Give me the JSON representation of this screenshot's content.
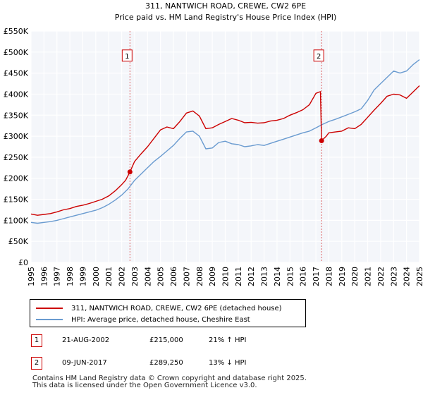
{
  "chart_data": {
    "type": "line",
    "title": "311, NANTWICH ROAD, CREWE, CW2 6PE",
    "subtitle": "Price paid vs. HM Land Registry's House Price Index (HPI)",
    "y_tick_labels": [
      "£0",
      "£50K",
      "£100K",
      "£150K",
      "£200K",
      "£250K",
      "£300K",
      "£350K",
      "£400K",
      "£450K",
      "£500K",
      "£550K"
    ],
    "y_ticks": [
      0,
      50000,
      100000,
      150000,
      200000,
      250000,
      300000,
      350000,
      400000,
      450000,
      500000,
      550000
    ],
    "x_tick_labels": [
      "1995",
      "1996",
      "1997",
      "1998",
      "1999",
      "2000",
      "2001",
      "2002",
      "2003",
      "2004",
      "2005",
      "2006",
      "2007",
      "2008",
      "2009",
      "2010",
      "2011",
      "2012",
      "2013",
      "2014",
      "2015",
      "2016",
      "2017",
      "2018",
      "2019",
      "2020",
      "2021",
      "2022",
      "2023",
      "2024",
      "2025"
    ],
    "xlim": [
      1995,
      2025
    ],
    "ylim": [
      0,
      550000
    ],
    "grid": true,
    "series": [
      {
        "name": "311, NANTWICH ROAD, CREWE, CW2 6PE (detached house)",
        "color": "#cc0000",
        "x": [
          1995.0,
          1995.5,
          1996.0,
          1996.5,
          1997.0,
          1997.5,
          1998.0,
          1998.5,
          1999.0,
          1999.5,
          2000.0,
          2000.5,
          2001.0,
          2001.5,
          2002.0,
          2002.3,
          2002.64,
          2003.0,
          2003.5,
          2004.0,
          2004.5,
          2005.0,
          2005.5,
          2006.0,
          2006.5,
          2007.0,
          2007.5,
          2008.0,
          2008.5,
          2009.0,
          2009.5,
          2010.0,
          2010.5,
          2011.0,
          2011.5,
          2012.0,
          2012.5,
          2013.0,
          2013.5,
          2014.0,
          2014.5,
          2015.0,
          2015.5,
          2016.0,
          2016.5,
          2017.0,
          2017.35,
          2017.44,
          2017.8,
          2018.0,
          2018.5,
          2019.0,
          2019.5,
          2020.0,
          2020.5,
          2021.0,
          2021.5,
          2022.0,
          2022.5,
          2023.0,
          2023.5,
          2024.0,
          2024.5,
          2025.0
        ],
        "values": [
          115000,
          112000,
          114000,
          116000,
          120000,
          125000,
          128000,
          133000,
          136000,
          140000,
          145000,
          150000,
          158000,
          170000,
          185000,
          195000,
          215000,
          240000,
          258000,
          275000,
          295000,
          315000,
          322000,
          318000,
          335000,
          355000,
          360000,
          348000,
          318000,
          320000,
          328000,
          335000,
          342000,
          338000,
          332000,
          333000,
          331000,
          332000,
          336000,
          338000,
          342000,
          350000,
          356000,
          363000,
          375000,
          402000,
          406000,
          289250,
          300000,
          308000,
          310000,
          312000,
          320000,
          318000,
          328000,
          345000,
          362000,
          378000,
          395000,
          400000,
          398000,
          390000,
          405000,
          420000
        ]
      },
      {
        "name": "HPI: Average price, detached house, Cheshire East",
        "color": "#6a9bd0",
        "x": [
          1995.0,
          1995.5,
          1996.0,
          1996.5,
          1997.0,
          1997.5,
          1998.0,
          1998.5,
          1999.0,
          1999.5,
          2000.0,
          2000.5,
          2001.0,
          2001.5,
          2002.0,
          2002.5,
          2003.0,
          2003.5,
          2004.0,
          2004.5,
          2005.0,
          2005.5,
          2006.0,
          2006.5,
          2007.0,
          2007.5,
          2008.0,
          2008.5,
          2009.0,
          2009.5,
          2010.0,
          2010.5,
          2011.0,
          2011.5,
          2012.0,
          2012.5,
          2013.0,
          2013.5,
          2014.0,
          2014.5,
          2015.0,
          2015.5,
          2016.0,
          2016.5,
          2017.0,
          2017.5,
          2018.0,
          2018.5,
          2019.0,
          2019.5,
          2020.0,
          2020.5,
          2021.0,
          2021.5,
          2022.0,
          2022.5,
          2023.0,
          2023.5,
          2024.0,
          2024.5,
          2025.0
        ],
        "values": [
          95000,
          93000,
          95000,
          97000,
          100000,
          104000,
          108000,
          112000,
          116000,
          120000,
          124000,
          130000,
          138000,
          148000,
          160000,
          175000,
          195000,
          210000,
          225000,
          240000,
          252000,
          265000,
          278000,
          295000,
          310000,
          312000,
          300000,
          270000,
          272000,
          285000,
          288000,
          282000,
          280000,
          275000,
          277000,
          280000,
          278000,
          283000,
          288000,
          293000,
          298000,
          303000,
          308000,
          312000,
          320000,
          328000,
          335000,
          340000,
          346000,
          352000,
          358000,
          365000,
          385000,
          410000,
          425000,
          440000,
          455000,
          450000,
          455000,
          470000,
          482000
        ]
      }
    ],
    "annotations": [
      {
        "label": "1",
        "x": 2002.64,
        "y": 215000
      },
      {
        "label": "2",
        "x": 2017.44,
        "y": 289250
      }
    ]
  },
  "legend": {
    "property_label": "311, NANTWICH ROAD, CREWE, CW2 6PE (detached house)",
    "hpi_label": "HPI: Average price, detached house, Cheshire East",
    "property_color": "#cc0000",
    "hpi_color": "#6a9bd0"
  },
  "transactions": [
    {
      "num": "1",
      "date": "21-AUG-2002",
      "price": "£215,000",
      "hpi": "21% ↑ HPI"
    },
    {
      "num": "2",
      "date": "09-JUN-2017",
      "price": "£289,250",
      "hpi": "13% ↓ HPI"
    }
  ],
  "footer": {
    "line1": "Contains HM Land Registry data © Crown copyright and database right 2025.",
    "line2": "This data is licensed under the Open Government Licence v3.0."
  }
}
